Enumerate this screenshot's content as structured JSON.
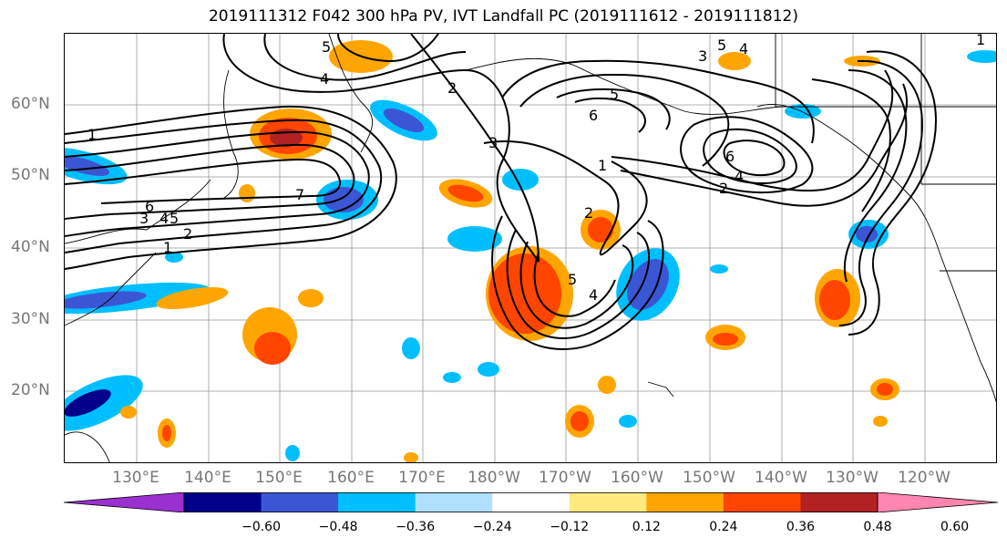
{
  "title": "2019111312 F042 300 hPa PV, IVT Landfall PC (2019111612 - 2019111812)",
  "map": {
    "lat_labels": [
      "60°N",
      "50°N",
      "40°N",
      "30°N",
      "20°N"
    ],
    "lon_labels": [
      "130°E",
      "140°E",
      "150°E",
      "160°E",
      "170°E",
      "180°W",
      "170°W",
      "160°W",
      "150°W",
      "140°W",
      "130°W",
      "120°W"
    ],
    "contour_labels": [
      "1",
      "2",
      "3",
      "4",
      "5",
      "6",
      "7",
      "5",
      "4",
      "3",
      "2",
      "1",
      "2",
      "5",
      "4",
      "6",
      "1",
      "2",
      "4",
      "5",
      "3",
      "6",
      "4",
      "5",
      "1"
    ]
  },
  "colorbar": {
    "ticks": [
      "−0.60",
      "−0.48",
      "−0.36",
      "−0.24",
      "−0.12",
      "0.12",
      "0.24",
      "0.36",
      "0.48",
      "0.60"
    ],
    "colors": [
      "#9b30d0",
      "#00008b",
      "#3b56d4",
      "#00bfff",
      "#b0e0ff",
      "#ffffff",
      "#ffea80",
      "#ffa500",
      "#ff4500",
      "#b22222",
      "#ff86b0"
    ]
  }
}
